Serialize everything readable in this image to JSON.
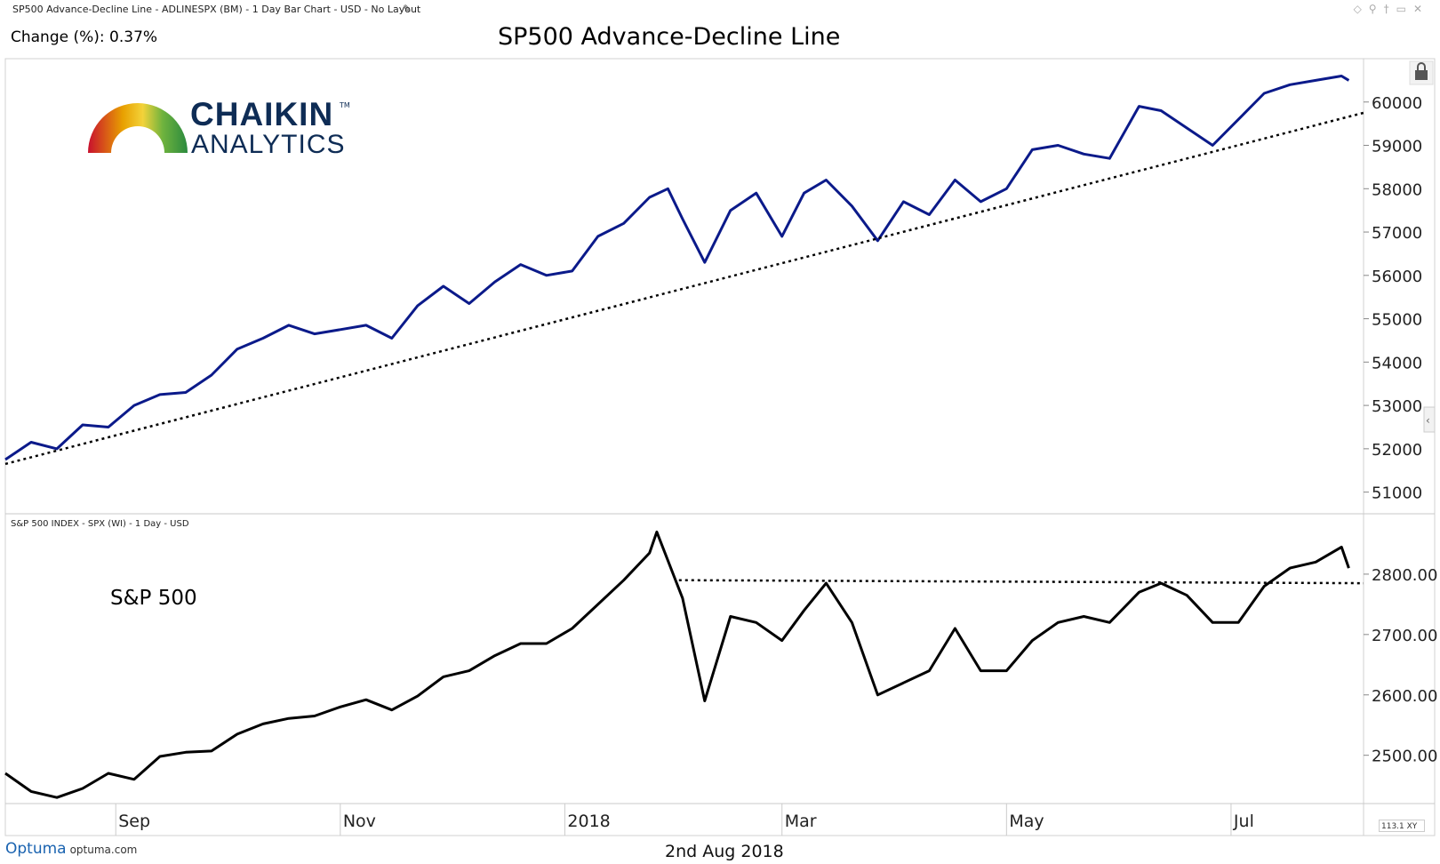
{
  "header": {
    "title": "SP500 Advance-Decline Line - ADLINESPX (BM) - 1 Day Bar Chart - USD - No Layout",
    "icons": [
      "diamond-icon",
      "pin-icon",
      "dagger-icon",
      "window-icon",
      "close-icon"
    ]
  },
  "change_text": "Change (%): 0.37%",
  "sub_header": "S&P 500 INDEX - SPX (WI) - 1 Day - USD",
  "logo": {
    "name": "CHAIKIN",
    "tm": "TM",
    "sub": "ANALYTICS"
  },
  "footer": {
    "brand": "Optuma",
    "domain": "optuma.com",
    "date": "2nd Aug 2018",
    "zoom": "113.1",
    "zoom_suffix": "XY"
  },
  "colors": {
    "ad_line": "#0b1a8a",
    "spx_line": "#000000",
    "grid": "#cfcfcf"
  },
  "chart_data": [
    {
      "type": "line",
      "title": "SP500 Advance-Decline Line",
      "series": [
        {
          "color": "#0b1a8a",
          "x": [
            "2017-08-02",
            "2017-08-09",
            "2017-08-16",
            "2017-08-23",
            "2017-08-30",
            "2017-09-06",
            "2017-09-13",
            "2017-09-20",
            "2017-09-27",
            "2017-10-04",
            "2017-10-11",
            "2017-10-18",
            "2017-10-25",
            "2017-11-01",
            "2017-11-08",
            "2017-11-15",
            "2017-11-22",
            "2017-11-29",
            "2017-12-06",
            "2017-12-13",
            "2017-12-20",
            "2017-12-27",
            "2018-01-03",
            "2018-01-10",
            "2018-01-17",
            "2018-01-24",
            "2018-01-29",
            "2018-02-02",
            "2018-02-08",
            "2018-02-15",
            "2018-02-22",
            "2018-03-01",
            "2018-03-07",
            "2018-03-13",
            "2018-03-20",
            "2018-03-27",
            "2018-04-03",
            "2018-04-10",
            "2018-04-17",
            "2018-04-24",
            "2018-05-01",
            "2018-05-08",
            "2018-05-15",
            "2018-05-22",
            "2018-05-29",
            "2018-06-06",
            "2018-06-12",
            "2018-06-19",
            "2018-06-26",
            "2018-07-03",
            "2018-07-10",
            "2018-07-17",
            "2018-07-24",
            "2018-07-31",
            "2018-08-02"
          ],
          "y": [
            51750,
            52150,
            52000,
            52550,
            52500,
            53000,
            53250,
            53300,
            53700,
            54300,
            54550,
            54850,
            54650,
            54750,
            54850,
            54550,
            55300,
            55750,
            55350,
            55850,
            56250,
            56000,
            56100,
            56900,
            57200,
            57800,
            58000,
            57300,
            56300,
            57500,
            57900,
            56900,
            57900,
            58200,
            57600,
            56800,
            57700,
            57400,
            58200,
            57700,
            58000,
            58900,
            59000,
            58800,
            58700,
            59900,
            59800,
            59400,
            59000,
            59600,
            60200,
            60400,
            60500,
            60600,
            60500
          ],
          "label_x": [],
          "label_y": []
        }
      ],
      "y_ticks": [
        "51000",
        "52000",
        "53000",
        "54000",
        "55000",
        "56000",
        "57000",
        "58000",
        "59000",
        "60000"
      ],
      "ylim": [
        50500,
        61000
      ],
      "trendline": {
        "x": [
          "2017-08-02",
          "2018-08-06"
        ],
        "y": [
          51650,
          59750
        ],
        "style": "dotted"
      },
      "grid": false,
      "locked": true
    },
    {
      "type": "line",
      "title": "S&P 500",
      "series": [
        {
          "color": "#000000",
          "x": [
            "2017-08-02",
            "2017-08-09",
            "2017-08-16",
            "2017-08-23",
            "2017-08-30",
            "2017-09-06",
            "2017-09-13",
            "2017-09-20",
            "2017-09-27",
            "2017-10-04",
            "2017-10-11",
            "2017-10-18",
            "2017-10-25",
            "2017-11-01",
            "2017-11-08",
            "2017-11-15",
            "2017-11-22",
            "2017-11-29",
            "2017-12-06",
            "2017-12-13",
            "2017-12-20",
            "2017-12-27",
            "2018-01-03",
            "2018-01-10",
            "2018-01-17",
            "2018-01-24",
            "2018-01-26",
            "2018-02-02",
            "2018-02-08",
            "2018-02-15",
            "2018-02-22",
            "2018-03-01",
            "2018-03-07",
            "2018-03-13",
            "2018-03-20",
            "2018-03-27",
            "2018-04-03",
            "2018-04-10",
            "2018-04-17",
            "2018-04-24",
            "2018-05-01",
            "2018-05-08",
            "2018-05-15",
            "2018-05-22",
            "2018-05-29",
            "2018-06-06",
            "2018-06-12",
            "2018-06-19",
            "2018-06-26",
            "2018-07-03",
            "2018-07-10",
            "2018-07-17",
            "2018-07-24",
            "2018-07-31",
            "2018-08-02"
          ],
          "y": [
            2470,
            2440,
            2430,
            2445,
            2470,
            2460,
            2498,
            2505,
            2507,
            2535,
            2552,
            2561,
            2565,
            2580,
            2592,
            2575,
            2598,
            2630,
            2640,
            2665,
            2685,
            2685,
            2710,
            2750,
            2790,
            2835,
            2870,
            2760,
            2590,
            2730,
            2720,
            2690,
            2740,
            2785,
            2720,
            2600,
            2620,
            2640,
            2710,
            2640,
            2640,
            2690,
            2720,
            2730,
            2720,
            2770,
            2785,
            2765,
            2720,
            2720,
            2780,
            2810,
            2820,
            2845,
            2810
          ],
          "label_x": [],
          "label_y": []
        }
      ],
      "y_ticks": [
        "2500.00",
        "2600.00",
        "2700.00",
        "2800.00"
      ],
      "ylim": [
        2420,
        2900
      ],
      "resistance": {
        "x": [
          "2018-02-01",
          "2018-08-06"
        ],
        "y": [
          2790,
          2785
        ],
        "style": "dotted"
      },
      "x_ticks": [
        "Sep",
        "Nov",
        "2018",
        "Mar",
        "May",
        "Jul"
      ],
      "grid": false
    }
  ]
}
